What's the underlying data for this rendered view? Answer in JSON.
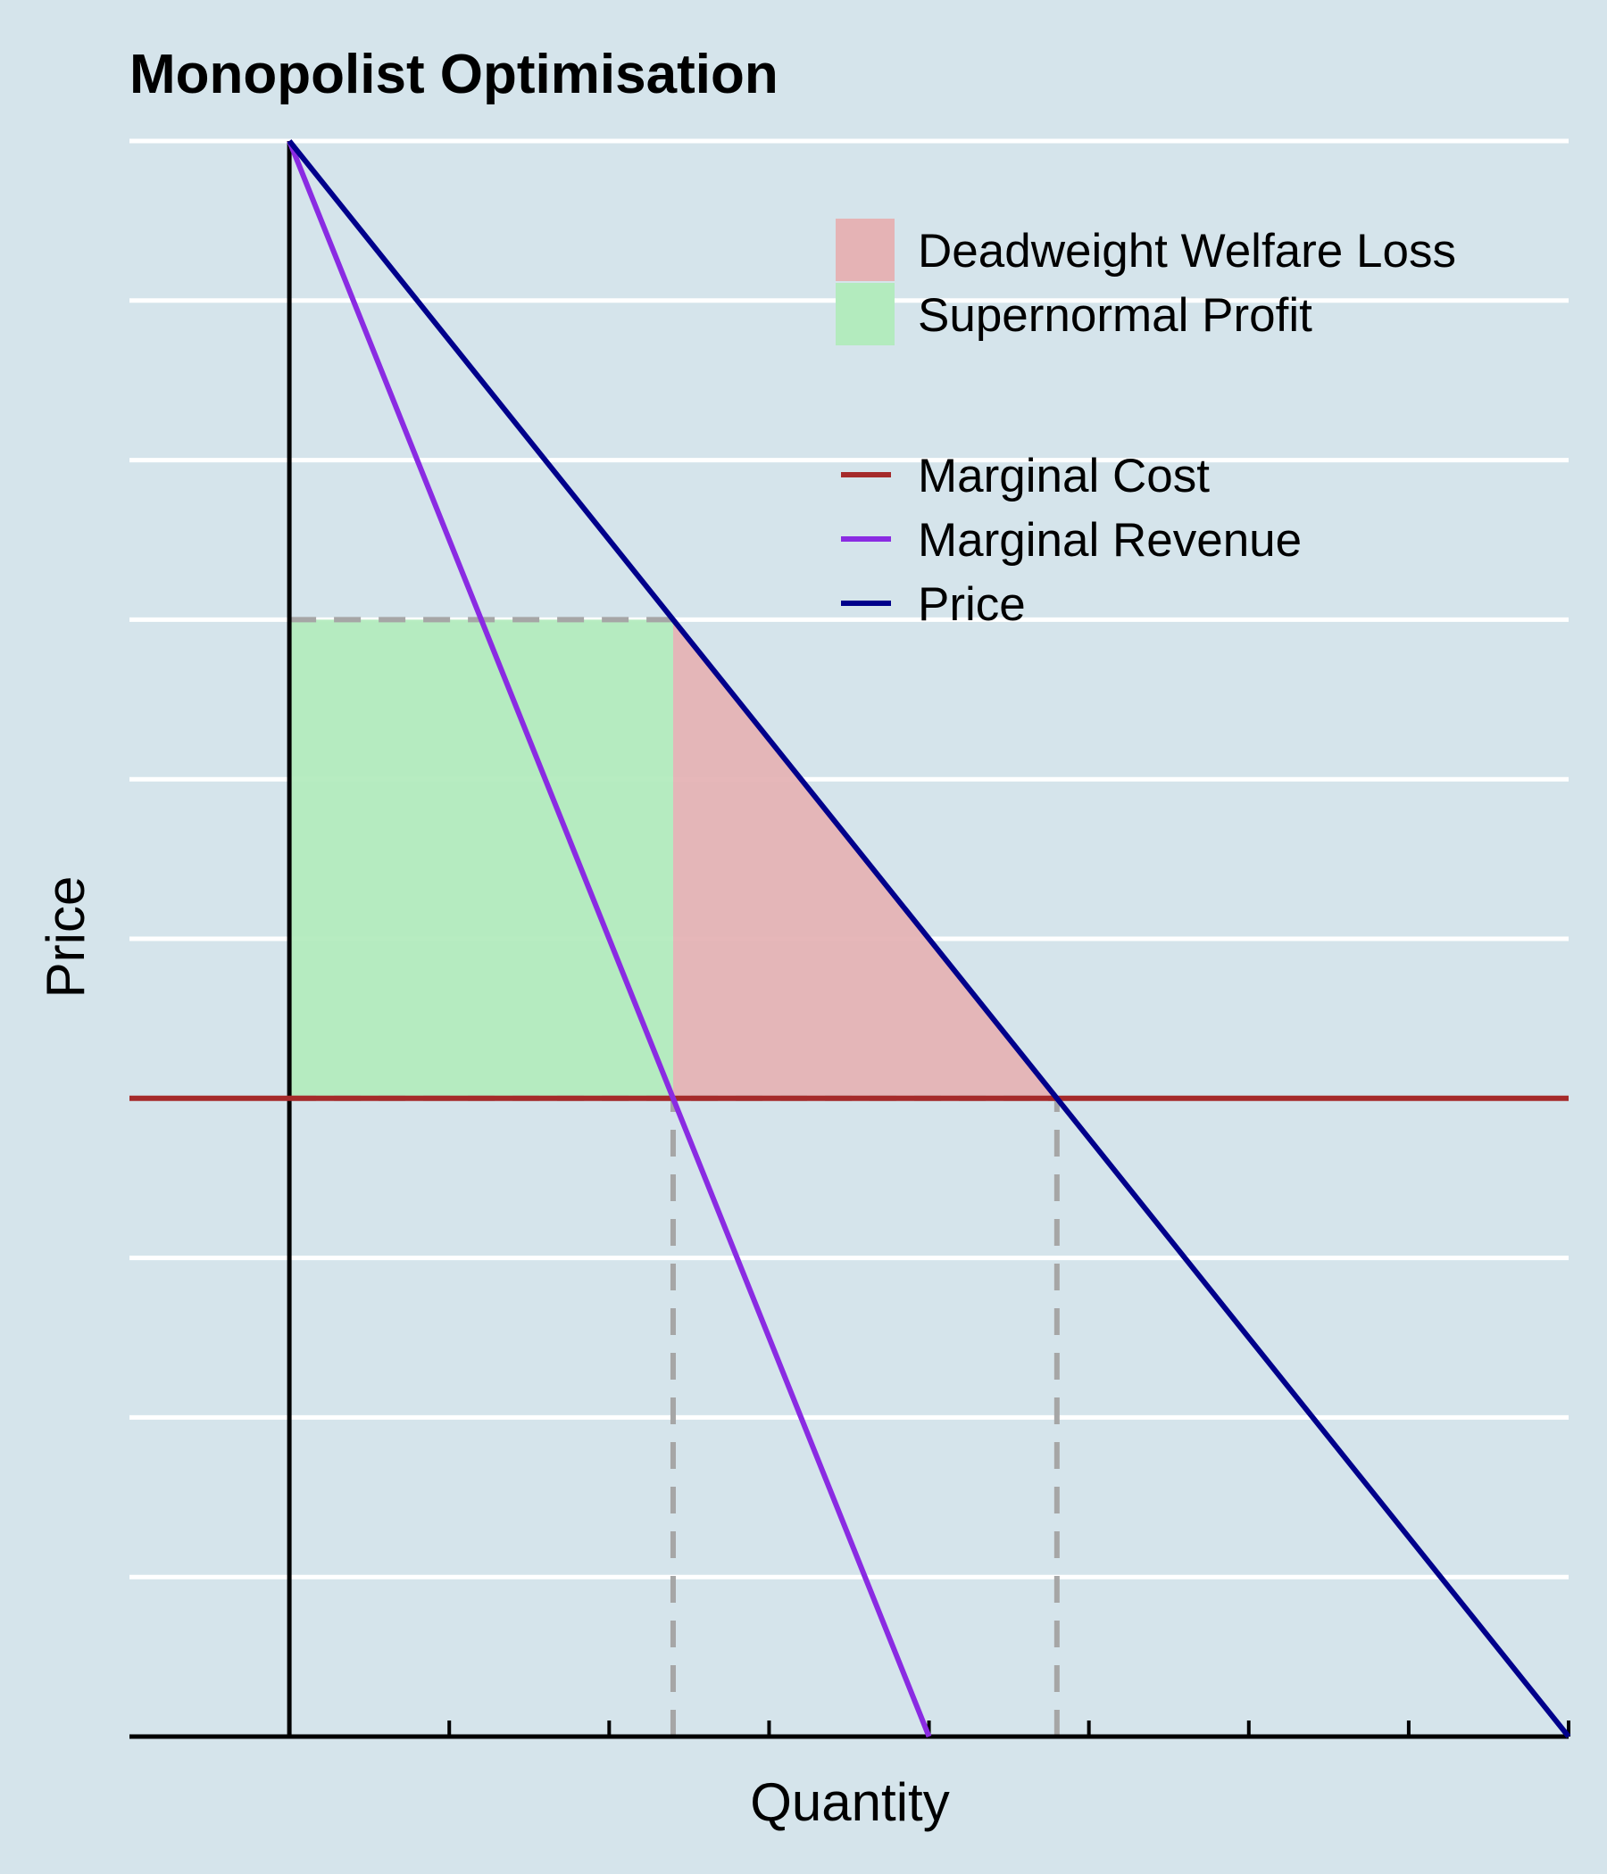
{
  "chart_data": {
    "type": "line",
    "title": "Monopolist Optimisation",
    "xlabel": "Quantity",
    "ylabel": "Price",
    "xlim": [
      -1,
      8
    ],
    "ylim": [
      0,
      10
    ],
    "grid": "horizontal",
    "x_tick_labels": "none",
    "y_tick_labels": "none",
    "legend_position": "top-right",
    "series": [
      {
        "name": "Marginal Cost",
        "color": "#a52a2a",
        "x": [
          -1,
          8
        ],
        "y": [
          4,
          4
        ]
      },
      {
        "name": "Marginal Revenue",
        "color": "#8a2be2",
        "x": [
          0,
          4
        ],
        "y": [
          10,
          0
        ]
      },
      {
        "name": "Price",
        "color": "#00008b",
        "x": [
          0,
          8
        ],
        "y": [
          10,
          0
        ]
      }
    ],
    "areas": [
      {
        "name": "Deadweight Welfare Loss",
        "color": "#e5b3b5",
        "points": [
          [
            2.4,
            7
          ],
          [
            4.8,
            4
          ],
          [
            2.4,
            4
          ]
        ]
      },
      {
        "name": "Supernormal Profit",
        "color": "#b3ebbe",
        "points": [
          [
            0,
            4
          ],
          [
            2.4,
            4
          ],
          [
            2.4,
            7
          ],
          [
            0,
            7
          ]
        ]
      }
    ],
    "reference_lines": [
      {
        "x": [
          0,
          2.4
        ],
        "y": [
          7,
          7
        ]
      },
      {
        "x": [
          0,
          4.8
        ],
        "y": [
          4,
          4
        ]
      },
      {
        "x": [
          2.4,
          2.4
        ],
        "y": [
          0,
          4
        ]
      },
      {
        "x": [
          4.8,
          4.8
        ],
        "y": [
          0,
          4
        ]
      }
    ]
  }
}
